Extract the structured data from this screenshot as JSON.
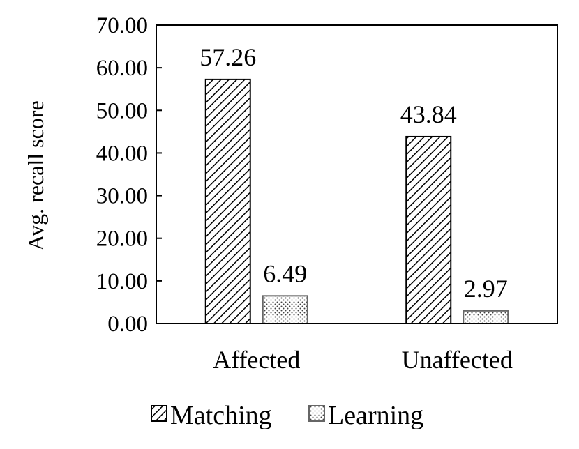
{
  "chart_data": {
    "type": "bar",
    "title": "",
    "xlabel": "",
    "ylabel": "Avg. recall score",
    "categories": [
      "Affected",
      "Unaffected"
    ],
    "series": [
      {
        "name": "Matching",
        "values": [
          57.26,
          43.84
        ],
        "labels": [
          "57.26",
          "43.84"
        ],
        "pattern": "diagonal-hatch"
      },
      {
        "name": "Learning",
        "values": [
          6.49,
          2.97
        ],
        "labels": [
          "6.49",
          "2.97"
        ],
        "pattern": "dots"
      }
    ],
    "ylim": [
      0,
      70
    ],
    "yticks": [
      "0.00",
      "10.00",
      "20.00",
      "30.00",
      "40.00",
      "50.00",
      "60.00",
      "70.00"
    ],
    "ytick_values": [
      0,
      10,
      20,
      30,
      40,
      50,
      60,
      70
    ],
    "grid": false,
    "legend_position": "bottom",
    "colors": {
      "axis": "#000000",
      "bar_fill": "#ffffff",
      "pattern": "#000000",
      "learning_border": "#666666"
    }
  }
}
